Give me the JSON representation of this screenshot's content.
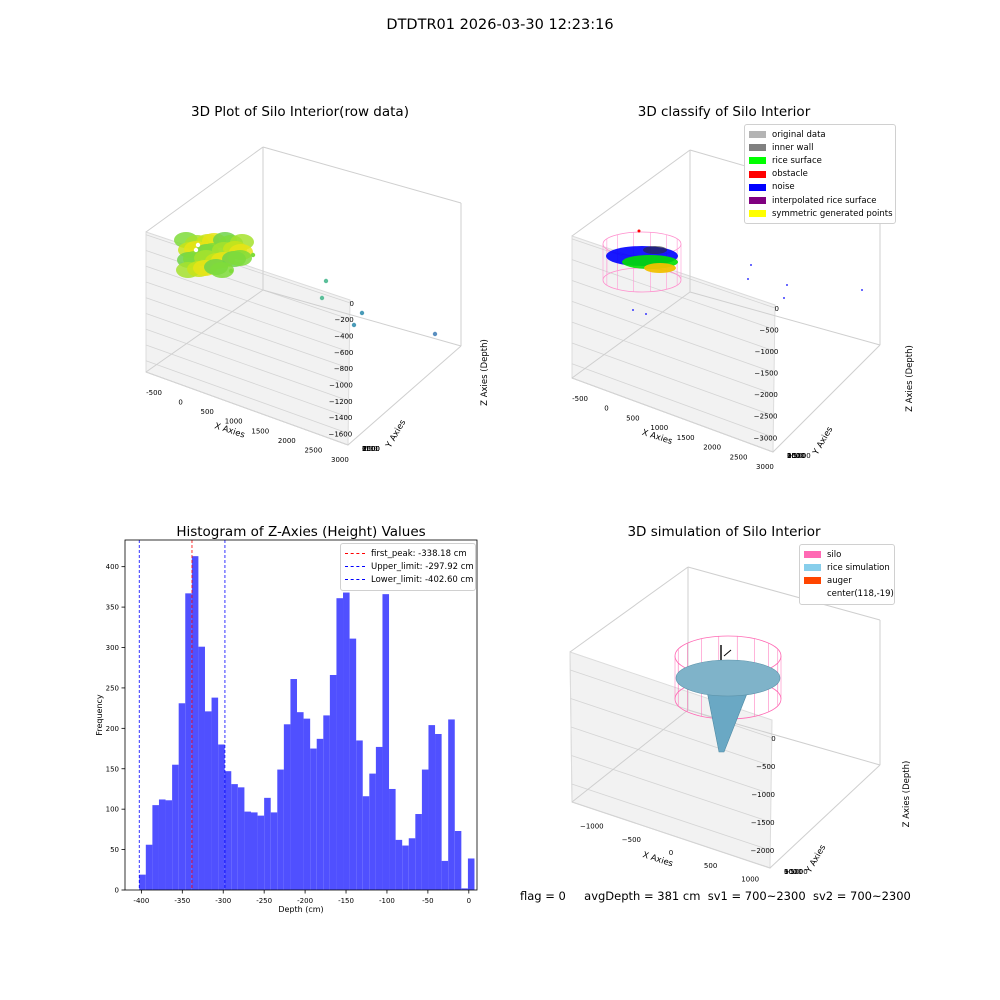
{
  "suptitle": "DTDTR01 2026-03-30 12:23:16",
  "panels": {
    "raw": {
      "title": "3D Plot of Silo Interior(row data)",
      "xlabel": "X Axies",
      "ylabel": "Y Axies",
      "zlabel": "Z Axies (Depth)",
      "xticks": [
        "-500",
        "0",
        "500",
        "1000",
        "1500",
        "2000",
        "2500",
        "3000"
      ],
      "yticks": [
        "-500",
        "0",
        "500",
        "1000",
        "1500",
        "2000",
        "2500"
      ],
      "zticks": [
        "0",
        "−200",
        "−400",
        "−600",
        "−800",
        "−1000",
        "−1200",
        "−1400",
        "−1600"
      ]
    },
    "classify": {
      "title": "3D classify of Silo Interior",
      "xlabel": "X Axies",
      "ylabel": "Y Axies",
      "zlabel": "Z Axies (Depth)",
      "xticks": [
        "-500",
        "0",
        "500",
        "1000",
        "1500",
        "2000",
        "2500",
        "3000"
      ],
      "yticks": [
        "−1000",
        "−500",
        "0",
        "500",
        "1000",
        "1500",
        "2000",
        "2500"
      ],
      "zticks": [
        "0",
        "−500",
        "−1000",
        "−1500",
        "−2000",
        "−2500",
        "−3000"
      ],
      "legend": [
        {
          "label": "original data",
          "color": "#b4b4b4"
        },
        {
          "label": "inner wall",
          "color": "#808080"
        },
        {
          "label": "rice surface",
          "color": "#00ff00"
        },
        {
          "label": "obstacle",
          "color": "#ff0000"
        },
        {
          "label": "noise",
          "color": "#0000ff"
        },
        {
          "label": "interpolated rice surface",
          "color": "#800080"
        },
        {
          "label": "symmetric generated points",
          "color": "#ffff00"
        }
      ]
    },
    "simulation": {
      "title": "3D simulation of Silo Interior",
      "xlabel": "X Axies",
      "ylabel": "Y Axies",
      "zlabel": "Z Axies (Depth)",
      "xticks": [
        "−1000",
        "−500",
        "0",
        "500",
        "1000"
      ],
      "yticks": [
        "−1000",
        "−500",
        "0",
        "500",
        "1000"
      ],
      "zticks": [
        "0",
        "−500",
        "−1000",
        "−1500",
        "−2000"
      ],
      "legend": [
        {
          "label": "silo",
          "color": "#ff69b4"
        },
        {
          "label": "rice simulation",
          "color": "#87ceeb"
        },
        {
          "label": "auger",
          "color": "#ff4500"
        },
        {
          "label": "center(118,-19)",
          "color": ""
        }
      ]
    }
  },
  "status": {
    "flag": "flag = 0",
    "avg": "avgDepth = 381 cm",
    "sv1": "sv1 = 700~2300",
    "sv2": "sv2 = 700~2300"
  },
  "chart_data": {
    "type": "bar",
    "title": "Histogram of Z-Axies (Height) Values",
    "xlabel": "Depth (cm)",
    "ylabel": "Frequency",
    "xlim": [
      -420,
      10
    ],
    "ylim": [
      0,
      433
    ],
    "xticks": [
      -400,
      -350,
      -300,
      -250,
      -200,
      -150,
      -100,
      -50,
      0
    ],
    "yticks": [
      0,
      50,
      100,
      150,
      200,
      250,
      300,
      350,
      400
    ],
    "bar_color": "#5050ff",
    "bin_start": -402.6,
    "bin_width": 8.03,
    "values": [
      19,
      56,
      105,
      112,
      111,
      155,
      231,
      367,
      413,
      301,
      221,
      238,
      180,
      147,
      131,
      127,
      97,
      96,
      92,
      114,
      96,
      149,
      205,
      261,
      220,
      212,
      175,
      187,
      216,
      266,
      361,
      368,
      311,
      185,
      116,
      144,
      177,
      366,
      125,
      62,
      55,
      64,
      94,
      149,
      204,
      193,
      36,
      211,
      73,
      2,
      39
    ],
    "vlines": [
      {
        "x": -338.18,
        "label": "first_peak: -338.18 cm",
        "color": "#ff0000"
      },
      {
        "x": -297.92,
        "label": "Upper_limit: -297.92 cm",
        "color": "#0000ff"
      },
      {
        "x": -402.6,
        "label": "Lower_limit: -402.60 cm",
        "color": "#0000ff"
      }
    ],
    "legend_position": "top-right"
  }
}
